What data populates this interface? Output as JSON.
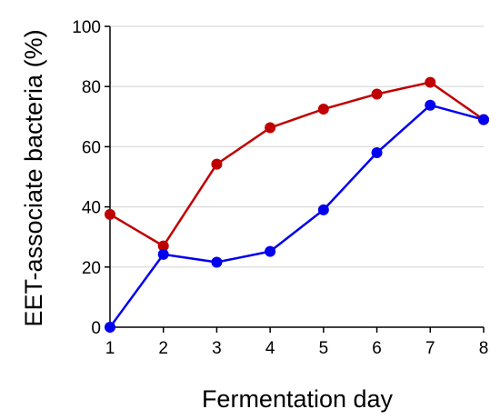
{
  "chart_data": {
    "type": "line",
    "title": "",
    "xlabel": "Fermentation day",
    "ylabel": "EET-associate bacteria (%)",
    "x": [
      1,
      2,
      3,
      4,
      5,
      6,
      7,
      8
    ],
    "xlim": [
      1,
      8
    ],
    "ylim": [
      0,
      100
    ],
    "yticks": [
      0,
      20,
      40,
      60,
      80,
      100
    ],
    "grid": "horizontal",
    "legend": "none",
    "series": [
      {
        "color": "#c00000",
        "values": [
          37.5,
          27.0,
          54.2,
          66.3,
          72.5,
          77.5,
          81.4,
          69.0
        ]
      },
      {
        "color": "#0000ee",
        "values": [
          0.0,
          24.2,
          21.6,
          25.2,
          39.0,
          58.0,
          73.8,
          69.0
        ]
      }
    ]
  }
}
